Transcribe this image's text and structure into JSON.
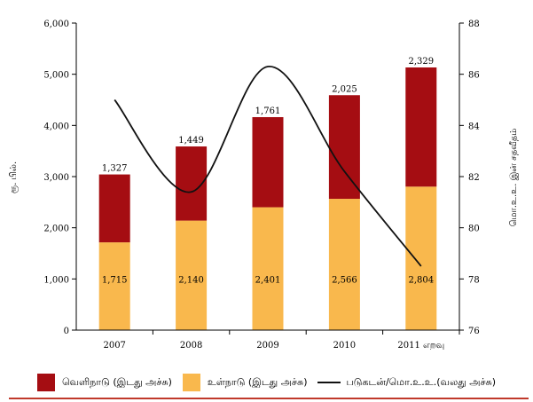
{
  "chart_data": {
    "type": "bar",
    "stacked": true,
    "categories": [
      "2007",
      "2008",
      "2009",
      "2010",
      "2011 எறவு"
    ],
    "series": [
      {
        "name": "உள்நாடு (இடது அச்சு)",
        "values": [
          1715,
          2140,
          2401,
          2566,
          2804
        ],
        "color": "#F9B84D",
        "axis": "left"
      },
      {
        "name": "வெளிநாடு (இடது அச்சு)",
        "values": [
          1327,
          1449,
          1761,
          2025,
          2329
        ],
        "color": "#A50D12",
        "axis": "left"
      },
      {
        "name": "படுகடன்/மொ.உ.உ.(வலது அச்சு)",
        "type": "line",
        "values": [
          85.0,
          81.4,
          86.3,
          82.2,
          78.5
        ],
        "color": "#111111",
        "axis": "right"
      }
    ],
    "ylabel": "ரூ. பில்.",
    "y2label": "மொ.உ.உ. இன் சதவீதம்",
    "ylim": [
      0,
      6000
    ],
    "y2lim": [
      76,
      88
    ],
    "yticks": [
      "0",
      "1,000",
      "2,000",
      "3,000",
      "4,000",
      "5,000",
      "6,000"
    ],
    "y2ticks": [
      "76",
      "78",
      "80",
      "82",
      "84",
      "86",
      "88"
    ],
    "bottom_labels": [
      "1,715",
      "2,140",
      "2,401",
      "2,566",
      "2,804"
    ],
    "top_labels": [
      "1,327",
      "1,449",
      "1,761",
      "2,025",
      "2,329"
    ],
    "legend_position": "bottom",
    "grid": false
  },
  "legend": {
    "foreign": "வெளிநாடு (இடது அச்சு)",
    "domestic": "உள்நாடு (இடது அச்சு)",
    "line": "படுகடன்/மொ.உ.உ.(வலது அச்சு)"
  },
  "colors": {
    "foreign": "#A50D12",
    "domestic": "#F9B84D",
    "line": "#111111",
    "rule": "#C0392B"
  }
}
